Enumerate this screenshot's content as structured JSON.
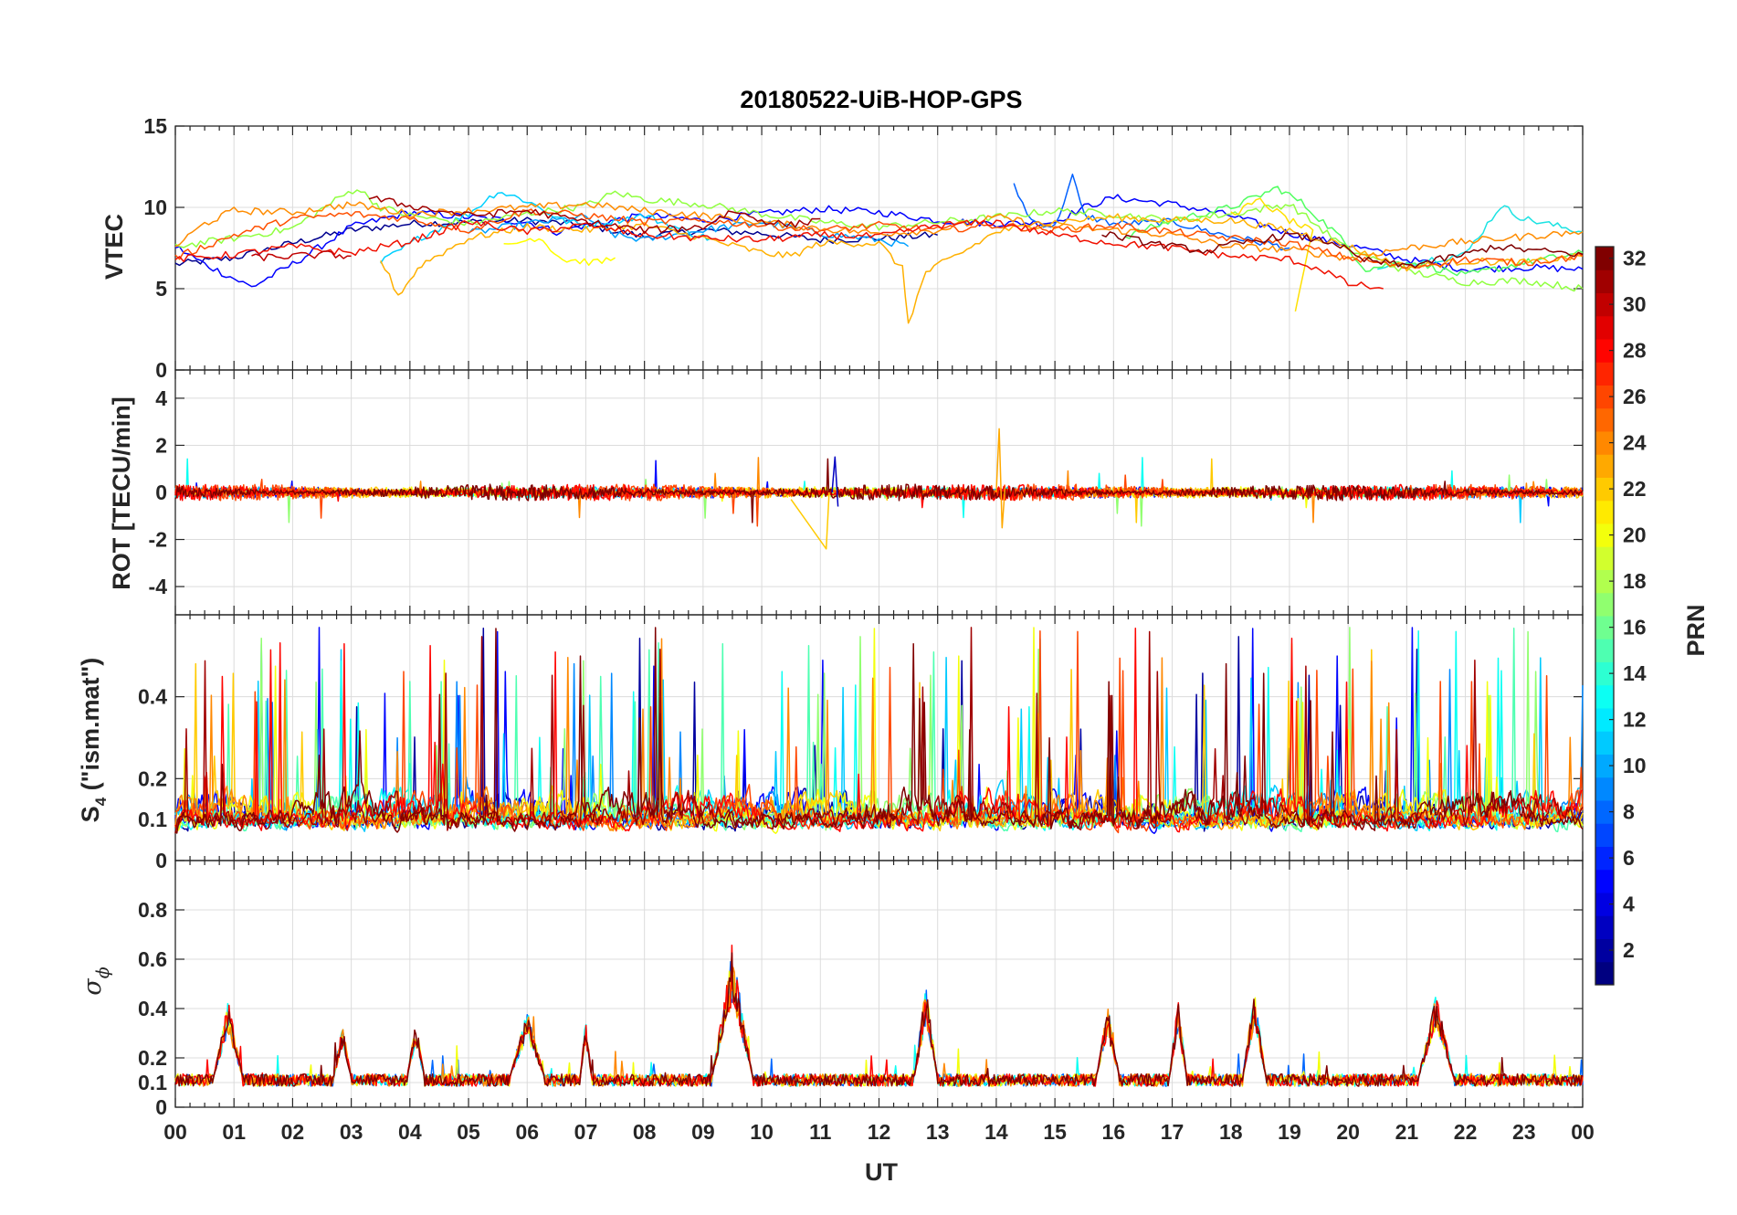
{
  "chart_data": {
    "type": "line",
    "title": "20180522-UiB-HOP-GPS",
    "xlabel": "UT",
    "x_range_hours": [
      0,
      24
    ],
    "x_tick_labels": [
      "00",
      "01",
      "02",
      "03",
      "04",
      "05",
      "06",
      "07",
      "08",
      "09",
      "10",
      "11",
      "12",
      "13",
      "14",
      "15",
      "16",
      "17",
      "18",
      "19",
      "20",
      "21",
      "22",
      "23",
      "00"
    ],
    "panels": [
      {
        "id": "vtec",
        "ylabel": "VTEC",
        "ylim": [
          0,
          15
        ],
        "yticks": [
          0,
          5,
          10,
          15
        ],
        "ytick_labels": [
          "0",
          "5",
          "10",
          "15"
        ]
      },
      {
        "id": "rot",
        "ylabel": "ROT [TECU/min]",
        "ylim": [
          -5.2,
          5.2
        ],
        "yticks": [
          -4,
          -2,
          0,
          2,
          4
        ],
        "ytick_labels": [
          "-4",
          "-2",
          "0",
          "2",
          "4"
        ]
      },
      {
        "id": "s4",
        "ylabel_main": "S",
        "ylabel_sub": "4",
        "ylabel_rest": " (\"ism.mat\")",
        "ylim": [
          0,
          0.6
        ],
        "yticks": [
          0,
          0.1,
          0.2,
          0.4
        ],
        "ytick_labels": [
          "0",
          "0.1",
          "0.2",
          "0.4"
        ]
      },
      {
        "id": "sigma",
        "ylabel_main": "σ",
        "ylabel_sub": "ϕ",
        "ylim": [
          0,
          1
        ],
        "yticks": [
          0,
          0.1,
          0.2,
          0.4,
          0.6,
          0.8
        ],
        "ytick_labels": [
          "0",
          "0.1",
          "0.2",
          "0.4",
          "0.6",
          "0.8"
        ]
      }
    ],
    "colorbar": {
      "label": "PRN",
      "range": [
        1,
        32
      ],
      "ticks": [
        2,
        4,
        6,
        8,
        10,
        12,
        14,
        16,
        18,
        20,
        22,
        24,
        26,
        28,
        30,
        32
      ],
      "tick_labels": [
        "2",
        "4",
        "6",
        "8",
        "10",
        "12",
        "14",
        "16",
        "18",
        "20",
        "22",
        "24",
        "26",
        "28",
        "30",
        "32"
      ],
      "colormap": "jet"
    },
    "series_note": "One trace per GPS satellite (PRN 1–32), colored by PRN",
    "vtec_series": [
      {
        "prn": 2,
        "color": "#00008f",
        "points": [
          [
            0,
            6.5
          ],
          [
            1,
            6.9
          ],
          [
            2,
            7.8
          ],
          [
            3,
            8.6
          ],
          [
            4,
            9.0
          ],
          [
            5,
            9.1
          ],
          [
            6,
            9.2
          ],
          [
            7,
            8.9
          ],
          [
            8,
            8.2
          ],
          [
            9,
            8.6
          ],
          [
            10,
            8.4
          ],
          [
            11,
            8.0
          ],
          [
            12,
            8.1
          ],
          [
            13,
            8.3
          ]
        ]
      },
      {
        "prn": 5,
        "color": "#0000ff",
        "points": [
          [
            0,
            7.6
          ],
          [
            0.5,
            6.5
          ],
          [
            1.3,
            5.1
          ],
          [
            2,
            6.5
          ],
          [
            3,
            8.8
          ],
          [
            4,
            9.7
          ],
          [
            5,
            9.4
          ],
          [
            6,
            9.1
          ],
          [
            6.5,
            8.5
          ],
          [
            7,
            8.9
          ],
          [
            8,
            9.5
          ],
          [
            9,
            9.2
          ],
          [
            10,
            9.6
          ],
          [
            11,
            9.9
          ],
          [
            12,
            9.7
          ],
          [
            13,
            9.2
          ],
          [
            14,
            9.0
          ],
          [
            15,
            9.1
          ],
          [
            15.5,
            10.0
          ],
          [
            16,
            10.6
          ],
          [
            17,
            10.2
          ],
          [
            18,
            9.5
          ],
          [
            19,
            8.4
          ],
          [
            20,
            7.7
          ],
          [
            21,
            6.8
          ],
          [
            22,
            6.2
          ],
          [
            23,
            6.3
          ],
          [
            24,
            6.2
          ]
        ]
      },
      {
        "prn": 8,
        "color": "#0060ff",
        "points": [
          [
            14.3,
            11.3
          ],
          [
            14.6,
            9.2
          ],
          [
            15,
            8.8
          ],
          [
            15.3,
            11.9
          ],
          [
            15.5,
            9.5
          ],
          [
            16,
            9.0
          ],
          [
            17,
            9.1
          ],
          [
            18,
            8.2
          ],
          [
            19,
            7.5
          ]
        ]
      },
      {
        "prn": 11,
        "color": "#00a0ff",
        "points": [
          [
            5,
            8.4
          ],
          [
            6,
            9.0
          ],
          [
            7,
            9.4
          ],
          [
            7.5,
            8.3
          ],
          [
            8,
            8.0
          ],
          [
            9,
            8.6
          ],
          [
            10,
            9.1
          ],
          [
            11,
            8.4
          ],
          [
            12,
            8.0
          ],
          [
            12.5,
            7.6
          ]
        ]
      },
      {
        "prn": 13,
        "color": "#00d0ff",
        "points": [
          [
            3.5,
            6.6
          ],
          [
            4.2,
            8.2
          ],
          [
            5,
            9.6
          ],
          [
            5.5,
            11.0
          ],
          [
            6,
            10.4
          ],
          [
            6.6,
            9.2
          ],
          [
            7,
            8.9
          ],
          [
            8,
            9.5
          ],
          [
            8.8,
            8.4
          ],
          [
            9.2,
            8.0
          ]
        ]
      },
      {
        "prn": 12,
        "color": "#1ce3e3",
        "points": [
          [
            20.5,
            6.1
          ],
          [
            21,
            6.6
          ],
          [
            22,
            7.1
          ],
          [
            22.6,
            10.1
          ],
          [
            23,
            9.3
          ],
          [
            24,
            8.5
          ]
        ]
      },
      {
        "prn": 15,
        "color": "#50ff60",
        "points": [
          [
            16.2,
            8.2
          ],
          [
            17,
            9.2
          ],
          [
            18,
            10.0
          ],
          [
            18.8,
            11.2
          ],
          [
            19.2,
            10.3
          ],
          [
            19.8,
            8.4
          ],
          [
            20.3,
            6.2
          ],
          [
            21,
            6.7
          ],
          [
            22,
            5.8
          ],
          [
            23,
            6.6
          ],
          [
            24,
            7.2
          ]
        ]
      },
      {
        "prn": 17,
        "color": "#90ff40",
        "points": [
          [
            0,
            7.6
          ],
          [
            1,
            8.1
          ],
          [
            2,
            8.7
          ],
          [
            2.8,
            10.6
          ],
          [
            3.1,
            11.2
          ],
          [
            3.5,
            10.0
          ],
          [
            4,
            9.5
          ],
          [
            5,
            9.0
          ],
          [
            6,
            9.6
          ],
          [
            7,
            10.1
          ],
          [
            7.5,
            10.9
          ],
          [
            8,
            10.5
          ],
          [
            9,
            10.2
          ],
          [
            10,
            9.6
          ],
          [
            11,
            9.1
          ],
          [
            12,
            8.8
          ],
          [
            13,
            9.1
          ],
          [
            14,
            9.4
          ],
          [
            15,
            9.8
          ],
          [
            16,
            9.6
          ],
          [
            17,
            9.2
          ],
          [
            18,
            9.6
          ],
          [
            19,
            10.2
          ],
          [
            20,
            7.4
          ],
          [
            21,
            6.1
          ],
          [
            22,
            5.4
          ],
          [
            23,
            5.5
          ],
          [
            24,
            5.0
          ]
        ]
      },
      {
        "prn": 20,
        "color": "#ffff00",
        "points": [
          [
            5.6,
            7.6
          ],
          [
            6.2,
            8.2
          ],
          [
            6.6,
            6.8
          ],
          [
            7.2,
            6.6
          ],
          [
            7.5,
            6.9
          ]
        ]
      },
      {
        "prn": 20,
        "color": "#ffe000",
        "points": [
          [
            18,
            9.6
          ],
          [
            18.5,
            10.4
          ],
          [
            19,
            9.2
          ],
          [
            19.4,
            8.5
          ],
          [
            19.1,
            3.6
          ]
        ]
      },
      {
        "prn": 22,
        "color": "#ffb000",
        "points": [
          [
            3.5,
            6.8
          ],
          [
            3.8,
            4.6
          ],
          [
            4.2,
            6.5
          ],
          [
            5,
            8.1
          ],
          [
            6,
            8.8
          ],
          [
            7,
            8.6
          ],
          [
            8,
            8.9
          ],
          [
            9,
            8.1
          ],
          [
            10,
            7.2
          ],
          [
            10.5,
            7.0
          ],
          [
            11,
            7.8
          ],
          [
            12,
            7.8
          ],
          [
            12.4,
            6.2
          ],
          [
            12.5,
            2.9
          ],
          [
            12.8,
            6.0
          ],
          [
            13.5,
            7.4
          ],
          [
            14,
            8.5
          ],
          [
            15,
            9.1
          ],
          [
            16,
            9.4
          ],
          [
            17,
            9.2
          ],
          [
            18,
            9.2
          ],
          [
            19,
            8.6
          ],
          [
            20,
            7.6
          ],
          [
            21,
            6.3
          ],
          [
            22,
            6.7
          ],
          [
            23,
            6.6
          ],
          [
            24,
            7.0
          ]
        ]
      },
      {
        "prn": 24,
        "color": "#ff8c00",
        "points": [
          [
            0,
            7.6
          ],
          [
            0.5,
            9.0
          ],
          [
            1,
            9.8
          ],
          [
            2,
            9.7
          ],
          [
            3,
            10.2
          ],
          [
            4,
            9.6
          ],
          [
            5,
            9.8
          ],
          [
            6,
            10.0
          ],
          [
            7,
            10.2
          ],
          [
            8,
            9.8
          ],
          [
            9,
            9.5
          ],
          [
            10,
            9.1
          ],
          [
            11,
            8.7
          ],
          [
            12,
            8.4
          ],
          [
            13,
            8.6
          ],
          [
            14,
            9.4
          ],
          [
            15,
            8.8
          ],
          [
            16,
            8.6
          ],
          [
            17,
            8.3
          ],
          [
            18,
            7.6
          ],
          [
            19,
            7.4
          ],
          [
            20,
            6.9
          ],
          [
            21,
            7.5
          ],
          [
            22,
            7.9
          ],
          [
            23,
            8.2
          ],
          [
            24,
            8.5
          ]
        ]
      },
      {
        "prn": 26,
        "color": "#ff5000",
        "points": [
          [
            0,
            6.9
          ],
          [
            1,
            8.3
          ],
          [
            2,
            9.3
          ],
          [
            3,
            9.6
          ],
          [
            4,
            9.3
          ],
          [
            5,
            8.6
          ],
          [
            6,
            9.8
          ],
          [
            7,
            9.5
          ],
          [
            8,
            9.1
          ],
          [
            9,
            9.2
          ],
          [
            10,
            8.9
          ],
          [
            11,
            8.6
          ],
          [
            12,
            8.9
          ],
          [
            13,
            8.6
          ],
          [
            14,
            8.9
          ],
          [
            15,
            8.6
          ],
          [
            16,
            8.9
          ],
          [
            17,
            8.5
          ],
          [
            18,
            8.1
          ],
          [
            19,
            7.8
          ],
          [
            20,
            6.9
          ],
          [
            21,
            6.3
          ],
          [
            22,
            6.8
          ],
          [
            23,
            6.6
          ],
          [
            24,
            7.0
          ]
        ]
      },
      {
        "prn": 28,
        "color": "#f01000",
        "points": [
          [
            0,
            6.8
          ],
          [
            1,
            7.1
          ],
          [
            2,
            7.6
          ],
          [
            3,
            7.2
          ],
          [
            4,
            7.9
          ],
          [
            5,
            9.1
          ],
          [
            6,
            8.5
          ],
          [
            7,
            8.9
          ],
          [
            8,
            8.3
          ],
          [
            9,
            8.1
          ],
          [
            10,
            8.0
          ],
          [
            11,
            8.3
          ],
          [
            12,
            8.2
          ],
          [
            13,
            8.9
          ],
          [
            14,
            9.1
          ],
          [
            15,
            8.3
          ],
          [
            16,
            7.8
          ],
          [
            17,
            7.5
          ],
          [
            18,
            7.0
          ],
          [
            19,
            6.8
          ],
          [
            19.6,
            6.1
          ],
          [
            20,
            5.3
          ],
          [
            20.6,
            5.0
          ]
        ]
      },
      {
        "prn": 30,
        "color": "#c00000",
        "points": [
          [
            1.3,
            6.9
          ],
          [
            2,
            7.0
          ],
          [
            2.6,
            7.1
          ],
          [
            3,
            7.0
          ]
        ]
      },
      {
        "prn": 31,
        "color": "#a00000",
        "points": [
          [
            3.3,
            10.6
          ],
          [
            4,
            10.1
          ],
          [
            5,
            9.5
          ],
          [
            6,
            9.8
          ],
          [
            7,
            9.1
          ],
          [
            8,
            8.6
          ],
          [
            9,
            8.8
          ],
          [
            9.5,
            9.8
          ],
          [
            10,
            9.2
          ],
          [
            10.5,
            8.9
          ],
          [
            11,
            9.3
          ]
        ]
      },
      {
        "prn": 32,
        "color": "#800000",
        "points": [
          [
            15.8,
            8.4
          ],
          [
            16.5,
            7.9
          ],
          [
            17,
            7.6
          ],
          [
            17.6,
            7.3
          ],
          [
            18,
            7.7
          ],
          [
            19,
            8.3
          ],
          [
            19.8,
            7.8
          ],
          [
            20.2,
            6.8
          ],
          [
            21,
            6.4
          ],
          [
            22,
            7.1
          ],
          [
            22.5,
            7.6
          ],
          [
            23,
            7.4
          ],
          [
            24,
            7.1
          ]
        ]
      }
    ]
  }
}
